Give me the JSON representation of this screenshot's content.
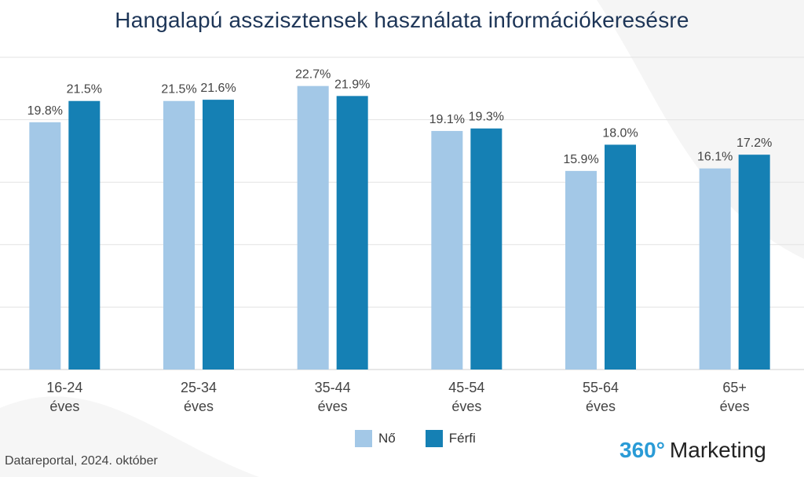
{
  "title": "Hangalapú asszisztensek használata információkeresésre",
  "source": "Datareportal, 2024. október",
  "brand": {
    "number": "360°",
    "text": "Marketing"
  },
  "colors": {
    "no": "#a3c8e7",
    "ferfi": "#1580b4",
    "title": "#1d3557",
    "brand_accent": "#2a9bd6"
  },
  "chart_data": {
    "type": "bar",
    "title": "Hangalapú asszisztensek használata információkeresésre",
    "categories": [
      [
        "16-24",
        "éves"
      ],
      [
        "25-34",
        "éves"
      ],
      [
        "35-44",
        "éves"
      ],
      [
        "45-54",
        "éves"
      ],
      [
        "55-64",
        "éves"
      ],
      [
        "65+",
        "éves"
      ]
    ],
    "series": [
      {
        "name": "Nő",
        "values": [
          19.8,
          21.5,
          22.7,
          19.1,
          15.9,
          16.1
        ],
        "labels": [
          "19.8%",
          "21.5%",
          "22.7%",
          "19.1%",
          "15.9%",
          "16.1%"
        ],
        "color": "#a3c8e7"
      },
      {
        "name": "Férfi",
        "values": [
          21.5,
          21.6,
          21.9,
          19.3,
          18.0,
          17.2
        ],
        "labels": [
          "21.5%",
          "21.6%",
          "21.9%",
          "19.3%",
          "18.0%",
          "17.2%"
        ],
        "color": "#1580b4"
      }
    ],
    "ylim": [
      0,
      25
    ],
    "grid": true,
    "legend": "bottom-center"
  }
}
